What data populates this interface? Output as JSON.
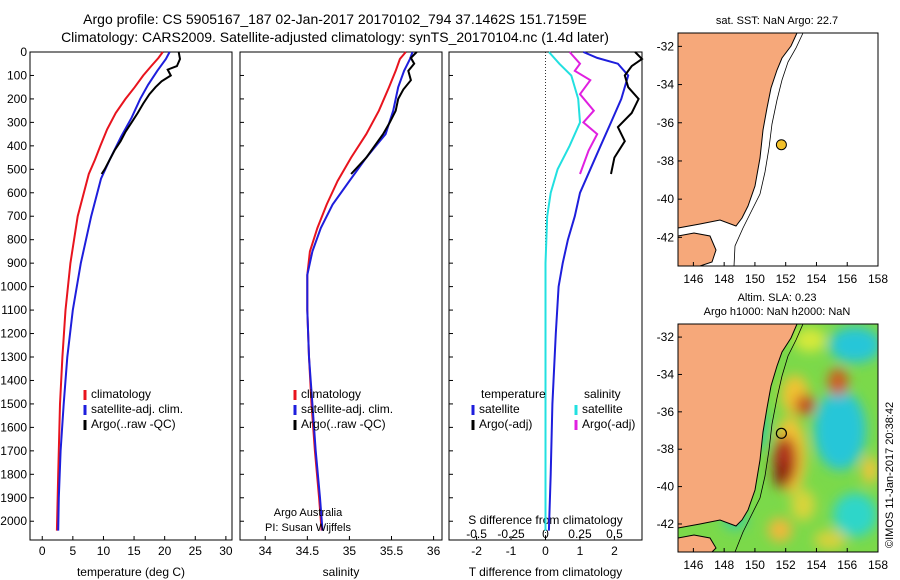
{
  "header": {
    "title_line1": "Argo profile: CS 5905167_187 02-Jan-2017 20170102_794 37.1462S 151.7159E",
    "title_line2": "Climatology: CARS2009. Satellite-adjusted climatology: synTS_20170104.nc (1.4d later)"
  },
  "credit": "©IMOS 11-Jan-2017 20:38:42",
  "argo_note": {
    "line1": "Argo Australia",
    "line2": "PI: Susan Wijffels"
  },
  "colors": {
    "climatology": "#e8141e",
    "satellite": "#1e1edc",
    "argo": "#000000",
    "sat_salinity": "#22e0e0",
    "argo_salinity": "#e020e0"
  },
  "chart_data": [
    {
      "type": "line",
      "xlabel": "temperature (deg C)",
      "xlim": [
        -2,
        31
      ],
      "xticks": [
        "0",
        "5",
        "10",
        "15",
        "20",
        "25",
        "30"
      ],
      "ylim": [
        0,
        2080
      ],
      "yticks": [
        "0",
        "100",
        "200",
        "300",
        "400",
        "500",
        "600",
        "700",
        "800",
        "900",
        "1000",
        "1100",
        "1200",
        "1300",
        "1400",
        "1500",
        "1600",
        "1700",
        "1800",
        "1900",
        "2000"
      ],
      "legend": [
        "climatology",
        "satellite-adj. clim.",
        "Argo(..raw -QC)"
      ],
      "series": [
        {
          "name": "climatology",
          "color": "#e8141e",
          "x": [
            19.7,
            19,
            17.8,
            16.5,
            15.1,
            13.6,
            12,
            10.6,
            9.5,
            8.6,
            7.6,
            5.8,
            4.6,
            3.8,
            3.3,
            2.9,
            2.6,
            2.4
          ],
          "y": [
            0,
            25,
            60,
            100,
            150,
            200,
            260,
            330,
            400,
            460,
            520,
            700,
            900,
            1100,
            1300,
            1500,
            1800,
            2040
          ]
        },
        {
          "name": "satellite-adj. clim.",
          "color": "#1e1edc",
          "x": [
            20.8,
            20.2,
            18.8,
            17.3,
            16,
            14.6,
            12.9,
            11,
            9.6,
            8,
            6.3,
            5,
            4.1,
            3.5,
            3,
            2.7,
            2.6
          ],
          "y": [
            0,
            30,
            80,
            140,
            200,
            280,
            360,
            460,
            540,
            700,
            900,
            1100,
            1300,
            1500,
            1700,
            1900,
            2040
          ]
        },
        {
          "name": "Argo(..raw -QC)",
          "color": "#000000",
          "x": [
            22.3,
            22.5,
            22,
            20.5,
            21,
            19.5,
            18.5,
            17.5,
            16.5,
            15.6,
            14.6,
            13.6,
            12.8,
            11.8,
            11,
            10.2,
            9.7
          ],
          "y": [
            0,
            30,
            60,
            75,
            100,
            125,
            150,
            180,
            220,
            260,
            300,
            340,
            380,
            420,
            460,
            500,
            520
          ]
        }
      ]
    },
    {
      "type": "line",
      "xlabel": "salinity",
      "xlim": [
        33.7,
        36.1
      ],
      "xticks": [
        "34",
        "34.5",
        "35",
        "35.5",
        "36"
      ],
      "ylim": [
        0,
        2080
      ],
      "legend": [
        "climatology",
        "satellite-adj. clim.",
        "Argo(..raw -QC)"
      ],
      "series": [
        {
          "name": "climatology",
          "color": "#e8141e",
          "x": [
            35.67,
            35.6,
            35.55,
            35.47,
            35.35,
            35.2,
            35.02,
            34.86,
            34.73,
            34.62,
            34.53,
            34.5,
            34.5,
            34.52,
            34.55,
            34.59,
            34.64,
            34.67
          ],
          "y": [
            0,
            30,
            80,
            150,
            250,
            350,
            450,
            550,
            650,
            750,
            850,
            950,
            1100,
            1300,
            1500,
            1700,
            1900,
            2040
          ]
        },
        {
          "name": "satellite-adj. clim.",
          "color": "#1e1edc",
          "x": [
            35.75,
            35.72,
            35.65,
            35.58,
            35.52,
            35.43,
            35.2,
            35,
            34.8,
            34.66,
            34.56,
            34.5,
            34.5,
            34.52,
            34.56,
            34.6,
            34.65,
            34.68
          ],
          "y": [
            0,
            30,
            80,
            150,
            250,
            350,
            450,
            550,
            650,
            750,
            850,
            950,
            1100,
            1300,
            1500,
            1700,
            1900,
            2040
          ]
        },
        {
          "name": "Argo(..raw -QC)",
          "color": "#000000",
          "x": [
            35.8,
            35.73,
            35.77,
            35.7,
            35.73,
            35.64,
            35.58,
            35.55,
            35.48,
            35.4,
            35.3,
            35.2,
            35.02
          ],
          "y": [
            0,
            25,
            50,
            80,
            120,
            160,
            200,
            250,
            300,
            350,
            400,
            450,
            520
          ]
        }
      ]
    },
    {
      "type": "line",
      "xlabel": "T difference from climatology",
      "xlabel_top": "S difference from climatology",
      "xlim": [
        -2.8,
        2.8
      ],
      "xticks": [
        "-2",
        "-1",
        "0",
        "1",
        "2"
      ],
      "xticks_top": [
        "-0.5",
        "-0.25",
        "0",
        "0.25",
        "0.5"
      ],
      "ylim": [
        0,
        2080
      ],
      "legend": [
        "temperature",
        "satellite",
        "Argo(-adj)",
        "salinity",
        "satellite",
        "Argo(-adj)"
      ],
      "series": [
        {
          "name": "satellite",
          "color": "#1e1edc",
          "x": [
            1.1,
            1.5,
            2.1,
            2.4,
            2.2,
            1.9,
            1.6,
            1.3,
            1,
            0.85,
            0.65,
            0.5,
            0.38,
            0.3,
            0.2,
            0.15,
            0.1
          ],
          "y": [
            0,
            25,
            50,
            100,
            200,
            300,
            400,
            500,
            600,
            700,
            800,
            900,
            1000,
            1200,
            1500,
            1800,
            2040
          ]
        },
        {
          "name": "Argo(-adj)",
          "color": "#000000",
          "x": [
            2.6,
            2.8,
            2.5,
            2.3,
            2.4,
            2.7,
            2.5,
            2.1,
            2.3,
            2.0,
            1.9
          ],
          "y": [
            0,
            30,
            60,
            100,
            150,
            200,
            260,
            320,
            380,
            450,
            520
          ]
        },
        {
          "name": "satellite",
          "color": "#22e0e0",
          "x": [
            0.1,
            0.4,
            0.75,
            0.95,
            1.0,
            0.7,
            0.35,
            0.15,
            0.05,
            0,
            0,
            0
          ],
          "y": [
            0,
            50,
            100,
            200,
            300,
            400,
            500,
            600,
            700,
            900,
            1400,
            2040
          ]
        },
        {
          "name": "Argo(-adj)",
          "color": "#e020e0",
          "x": [
            0.7,
            1.0,
            0.85,
            1.3,
            1.0,
            1.4,
            1.1,
            1.5,
            1.25,
            1.0
          ],
          "y": [
            0,
            50,
            80,
            120,
            180,
            250,
            300,
            350,
            420,
            520
          ]
        }
      ]
    },
    {
      "type": "scatter",
      "title": "sat. SST: NaN Argo: 22.7",
      "xlim": [
        145,
        158
      ],
      "ylim": [
        -43.5,
        -31.3
      ],
      "xticks": [
        "146",
        "148",
        "150",
        "152",
        "154",
        "156",
        "158"
      ],
      "yticks": [
        "-32",
        "-34",
        "-36",
        "-38",
        "-40",
        "-42"
      ],
      "point": {
        "lon": 151.72,
        "lat": -37.15
      }
    },
    {
      "type": "heatmap",
      "title_line1": "Altim. SLA: 0.23",
      "title_line2": "Argo h1000: NaN h2000: NaN",
      "xlim": [
        145,
        158
      ],
      "ylim": [
        -43.5,
        -31.3
      ],
      "xticks": [
        "146",
        "148",
        "150",
        "152",
        "154",
        "156",
        "158"
      ],
      "yticks": [
        "-32",
        "-34",
        "-36",
        "-38",
        "-40",
        "-42"
      ],
      "point": {
        "lon": 151.72,
        "lat": -37.15
      }
    }
  ]
}
